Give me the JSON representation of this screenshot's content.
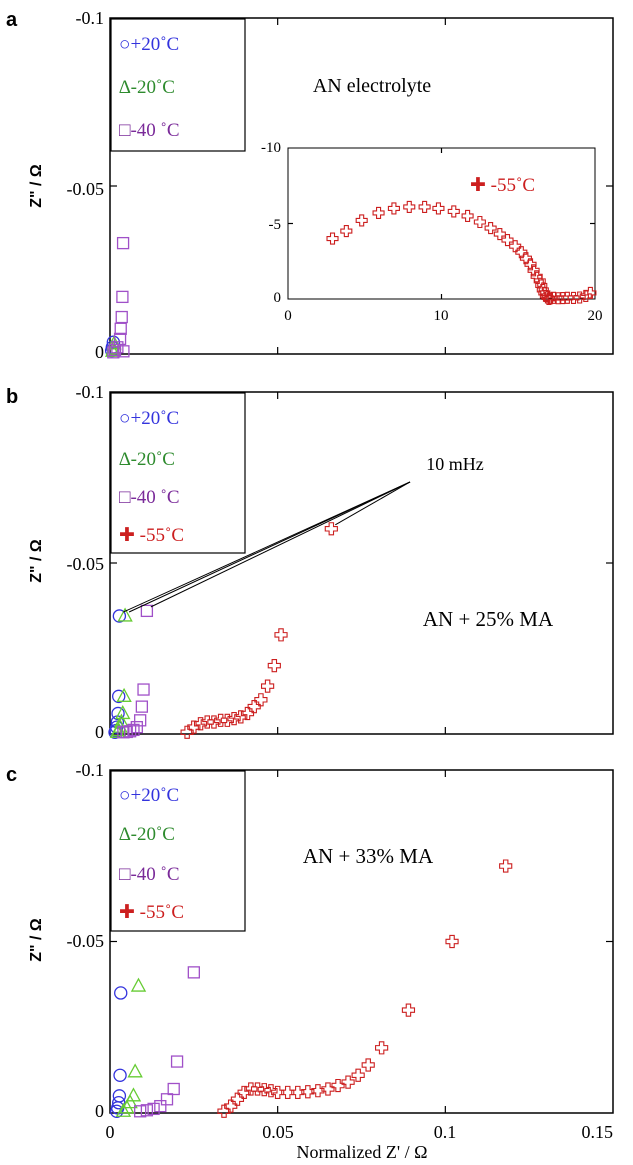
{
  "colors": {
    "p20": "#3333dd",
    "m20": "#2e8b2e",
    "m20_light": "#66cc33",
    "m40": "#7a2a99",
    "m40_light": "#a050c8",
    "m55": "#cc1f1f",
    "axis": "#000000"
  },
  "xlabel": "Normalized Z' / Ω",
  "ylabel": "Z\" / Ω",
  "panels": [
    {
      "letter": "a",
      "annotation": "AN electrolyte",
      "legend": [
        "○+20˚C",
        "∆-20˚C",
        "□-40 ˚C"
      ],
      "yticks": [
        "-0.1",
        "-0.05",
        "0"
      ],
      "inset": {
        "legend": "✚ -55˚C",
        "xticks": [
          "0",
          "10",
          "20"
        ],
        "yticks": [
          "-10",
          "-5",
          "0"
        ]
      }
    },
    {
      "letter": "b",
      "annotation": "AN + 25% MA",
      "note": "10 mHz",
      "legend": [
        "○+20˚C",
        "∆-20˚C",
        "□-40 ˚C",
        "✚ -55˚C"
      ],
      "yticks": [
        "-0.1",
        "-0.05",
        "0"
      ]
    },
    {
      "letter": "c",
      "annotation": "AN + 33% MA",
      "legend": [
        "○+20˚C",
        "∆-20˚C",
        "□-40 ˚C",
        "✚ -55˚C"
      ],
      "yticks": [
        "-0.1",
        "-0.05",
        "0"
      ],
      "xticks": [
        "0",
        "0.05",
        "0.1",
        "0.15"
      ]
    }
  ],
  "chart_data": [
    {
      "type": "scatter",
      "panel": "a",
      "xlim": [
        0,
        0.15
      ],
      "ylim": [
        0,
        -0.1
      ],
      "series": [
        {
          "name": "+20˚C",
          "marker": "circle",
          "x": [
            0.0005,
            0.0007,
            0.001
          ],
          "y": [
            -0.001,
            -0.002,
            -0.0035
          ]
        },
        {
          "name": "-20˚C",
          "marker": "triangle",
          "x": [
            0.0008,
            0.001,
            0.0012
          ],
          "y": [
            -0.0008,
            -0.0015,
            -0.003
          ]
        },
        {
          "name": "-40 ˚C",
          "marker": "square",
          "x": [
            0.001,
            0.0015,
            0.0022,
            0.003,
            0.0032,
            0.0035,
            0.0037,
            0.0039,
            0.004
          ],
          "y": [
            -0.0005,
            -0.0012,
            -0.002,
            -0.0045,
            -0.0075,
            -0.011,
            -0.017,
            -0.033,
            -0.0008
          ]
        }
      ],
      "inset": {
        "type": "scatter",
        "xlim": [
          0,
          20
        ],
        "ylim": [
          0,
          -10
        ],
        "series": [
          {
            "name": "-55˚C",
            "marker": "cross",
            "x": [
              2.9,
              3.8,
              4.8,
              5.9,
              6.9,
              7.9,
              8.9,
              9.8,
              10.8,
              11.7,
              12.5,
              13.2,
              13.8,
              14.3,
              14.8,
              15.2,
              15.5,
              15.8,
              16.0,
              16.2,
              16.4,
              16.5,
              16.6,
              16.7,
              16.8,
              16.9,
              17.0,
              17.1,
              17.3,
              17.6,
              17.9,
              18.2,
              18.6,
              19.0,
              19.4,
              19.7
            ],
            "y": [
              -4.0,
              -4.5,
              -5.2,
              -5.7,
              -6.0,
              -6.1,
              -6.1,
              -6.0,
              -5.8,
              -5.5,
              -5.1,
              -4.7,
              -4.3,
              -3.9,
              -3.5,
              -3.1,
              -2.7,
              -2.3,
              -1.9,
              -1.5,
              -1.2,
              -0.9,
              -0.6,
              -0.4,
              -0.2,
              -0.1,
              0.0,
              -0.05,
              -0.08,
              -0.05,
              -0.06,
              -0.08,
              -0.07,
              -0.1,
              -0.2,
              -0.4
            ]
          }
        ]
      }
    },
    {
      "type": "scatter",
      "panel": "b",
      "xlim": [
        0,
        0.15
      ],
      "ylim": [
        0,
        -0.1
      ],
      "annotation_points": "10 mHz",
      "series": [
        {
          "name": "+20˚C",
          "marker": "circle",
          "x": [
            0.0015,
            0.0018,
            0.002,
            0.0022,
            0.0024,
            0.0026,
            0.0028
          ],
          "y": [
            -0.0005,
            -0.001,
            -0.002,
            -0.0035,
            -0.006,
            -0.011,
            -0.0345
          ]
        },
        {
          "name": "-20˚C",
          "marker": "triangle",
          "x": [
            0.0022,
            0.0026,
            0.003,
            0.0034,
            0.0038,
            0.0042,
            0.0045
          ],
          "y": [
            -0.0005,
            -0.001,
            -0.002,
            -0.0035,
            -0.006,
            -0.011,
            -0.0345
          ]
        },
        {
          "name": "-40 ˚C",
          "marker": "square",
          "x": [
            0.004,
            0.005,
            0.006,
            0.007,
            0.008,
            0.009,
            0.0095,
            0.01,
            0.011
          ],
          "y": [
            -0.0005,
            -0.0006,
            -0.0008,
            -0.0012,
            -0.002,
            -0.004,
            -0.008,
            -0.013,
            -0.036
          ]
        },
        {
          "name": "-55˚C",
          "marker": "cross",
          "x": [
            0.023,
            0.025,
            0.027,
            0.029,
            0.031,
            0.033,
            0.035,
            0.037,
            0.039,
            0.041,
            0.043,
            0.045,
            0.047,
            0.049,
            0.051,
            0.066
          ],
          "y": [
            -0.0005,
            -0.002,
            -0.003,
            -0.0035,
            -0.0035,
            -0.004,
            -0.004,
            -0.0045,
            -0.005,
            -0.006,
            -0.008,
            -0.01,
            -0.014,
            -0.02,
            -0.029,
            -0.06
          ]
        }
      ]
    },
    {
      "type": "scatter",
      "panel": "c",
      "xlim": [
        0,
        0.15
      ],
      "ylim": [
        0,
        -0.1
      ],
      "xlabel": "Normalized Z' / Ω",
      "series": [
        {
          "name": "+20˚C",
          "marker": "circle",
          "x": [
            0.002,
            0.0023,
            0.0026,
            0.0028,
            0.003,
            0.0032
          ],
          "y": [
            -0.0005,
            -0.0015,
            -0.003,
            -0.005,
            -0.011,
            -0.035
          ]
        },
        {
          "name": "-20˚C",
          "marker": "triangle",
          "x": [
            0.004,
            0.005,
            0.006,
            0.007,
            0.0075,
            0.0085
          ],
          "y": [
            -0.0005,
            -0.0015,
            -0.003,
            -0.005,
            -0.012,
            -0.037
          ]
        },
        {
          "name": "-40 ˚C",
          "marker": "square",
          "x": [
            0.009,
            0.011,
            0.013,
            0.015,
            0.017,
            0.019,
            0.02,
            0.025
          ],
          "y": [
            -0.0005,
            -0.0008,
            -0.0012,
            -0.002,
            -0.004,
            -0.007,
            -0.015,
            -0.041
          ]
        },
        {
          "name": "-55˚C",
          "marker": "cross",
          "x": [
            0.034,
            0.036,
            0.038,
            0.04,
            0.042,
            0.044,
            0.046,
            0.048,
            0.05,
            0.053,
            0.056,
            0.059,
            0.062,
            0.065,
            0.068,
            0.071,
            0.074,
            0.077,
            0.081,
            0.089,
            0.102,
            0.118
          ],
          "y": [
            -0.0005,
            -0.002,
            -0.004,
            -0.006,
            -0.007,
            -0.007,
            -0.0068,
            -0.0065,
            -0.006,
            -0.006,
            -0.006,
            -0.0062,
            -0.0065,
            -0.007,
            -0.008,
            -0.009,
            -0.011,
            -0.014,
            -0.019,
            -0.03,
            -0.05,
            -0.072
          ]
        }
      ]
    }
  ]
}
